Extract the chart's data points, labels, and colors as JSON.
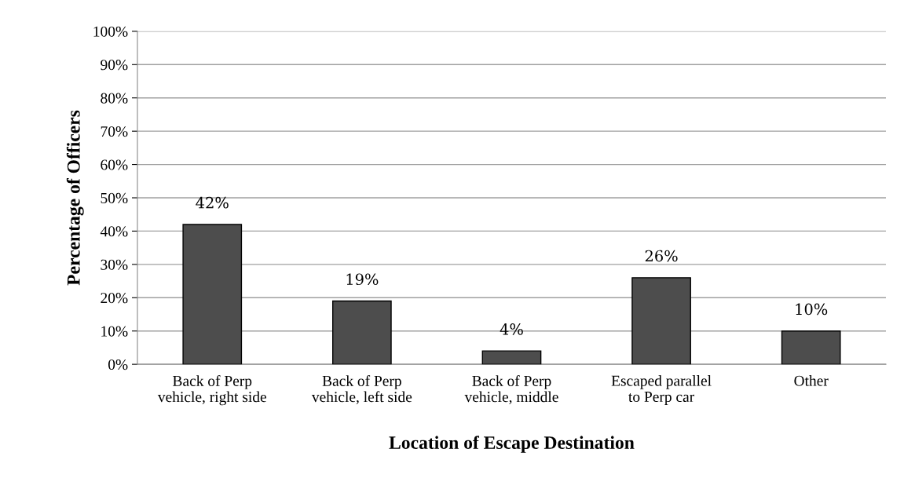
{
  "chart_data": {
    "type": "bar",
    "xlabel": "Location of Escape Destination",
    "ylabel": "Percentage of Officers",
    "categories": [
      "Back of Perp\nvehicle, right side",
      "Back of Perp\nvehicle, left side",
      "Back of Perp\nvehicle, middle",
      "Escaped parallel\nto Perp car",
      "Other"
    ],
    "values": [
      42,
      19,
      4,
      26,
      10
    ],
    "value_labels": [
      "42%",
      "19%",
      "4%",
      "26%",
      "10%"
    ],
    "color": "#4d4d4d",
    "ylim": [
      0,
      100
    ],
    "yticks": [
      {
        "value": 0,
        "label": "0%"
      },
      {
        "value": 10,
        "label": "10%"
      },
      {
        "value": 20,
        "label": "20%"
      },
      {
        "value": 30,
        "label": "30%"
      },
      {
        "value": 40,
        "label": "40%"
      },
      {
        "value": 50,
        "label": "50%"
      },
      {
        "value": 60,
        "label": "60%"
      },
      {
        "value": 70,
        "label": "70%"
      },
      {
        "value": 80,
        "label": "80%"
      },
      {
        "value": 90,
        "label": "90%"
      },
      {
        "value": 100,
        "label": "100%"
      }
    ],
    "grid": "y",
    "legend": false
  }
}
